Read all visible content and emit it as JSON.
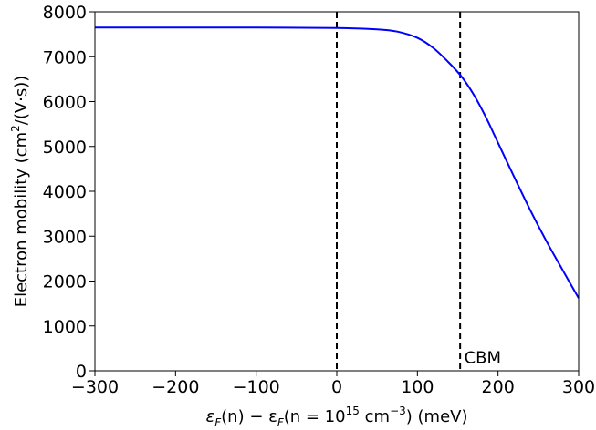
{
  "chart_data": {
    "type": "line",
    "xlabel": {
      "prefix": "ε",
      "sub": "F",
      "mid1": "(n) − ε",
      "sub2": "F",
      "mid2": "(n = 10",
      "sup": "15",
      "mid3": " cm",
      "sup2": "−3",
      "suffix": ") (meV)"
    },
    "ylabel": {
      "pre": "Electron mobility (cm",
      "sup": "2",
      "post": "/(V·s))"
    },
    "xlim": [
      -300,
      300
    ],
    "ylim": [
      0,
      8000
    ],
    "xticks": [
      -300,
      -200,
      -100,
      0,
      100,
      200,
      300
    ],
    "xtick_labels": [
      "−300",
      "−200",
      "−100",
      "0",
      "100",
      "200",
      "300"
    ],
    "yticks": [
      0,
      1000,
      2000,
      3000,
      4000,
      5000,
      6000,
      7000,
      8000
    ],
    "ytick_labels": [
      "0",
      "1000",
      "2000",
      "3000",
      "4000",
      "5000",
      "6000",
      "7000",
      "8000"
    ],
    "series": [
      {
        "color": "#0000ff",
        "points": [
          [
            -300,
            7650
          ],
          [
            -200,
            7650
          ],
          [
            -100,
            7650
          ],
          [
            0,
            7640
          ],
          [
            50,
            7610
          ],
          [
            75,
            7560
          ],
          [
            100,
            7420
          ],
          [
            120,
            7190
          ],
          [
            140,
            6850
          ],
          [
            155,
            6550
          ],
          [
            170,
            6150
          ],
          [
            185,
            5650
          ],
          [
            200,
            5080
          ],
          [
            220,
            4320
          ],
          [
            240,
            3580
          ],
          [
            260,
            2890
          ],
          [
            280,
            2250
          ],
          [
            300,
            1620
          ]
        ]
      }
    ],
    "vlines": [
      {
        "x": 0,
        "style": "dashed",
        "color": "#000000"
      },
      {
        "x": 153,
        "style": "dashed",
        "color": "#000000"
      }
    ],
    "annotations": [
      {
        "text": "CBM",
        "x": 158,
        "y": 250
      }
    ],
    "grid": false
  }
}
